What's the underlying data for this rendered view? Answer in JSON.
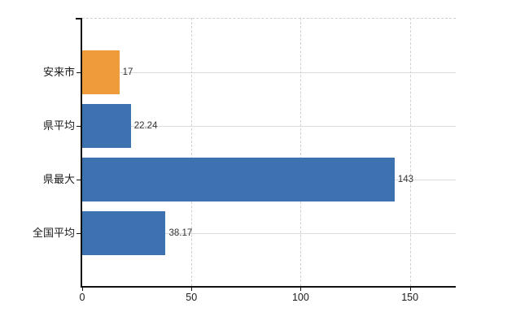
{
  "chart_data": {
    "type": "bar",
    "orientation": "horizontal",
    "title": "",
    "categories": [
      "安来市",
      "県平均",
      "県最大",
      "全国平均"
    ],
    "values": [
      17,
      22.24,
      143,
      38.17
    ],
    "value_labels": [
      "17",
      "22.24",
      "143",
      "38.17"
    ],
    "bar_colors": [
      "#ee9b3c",
      "#3b72af",
      "#3b72af",
      "#3b72af"
    ],
    "x_ticks": [
      0,
      50,
      100,
      150
    ],
    "x_tick_labels": [
      "0",
      "50",
      "100",
      "150"
    ],
    "xlim": [
      0,
      171
    ],
    "grid": true,
    "legend": "none"
  },
  "colors": {
    "highlight_bar": "#ee9b3c",
    "default_bar": "#3b72af",
    "h_gridline": "#d7ddd7",
    "v_gridline": "#d3ced3",
    "axis": "#111111",
    "value_text": "#333333",
    "label_text": "#1a1a1a",
    "background": "#ffffff"
  }
}
